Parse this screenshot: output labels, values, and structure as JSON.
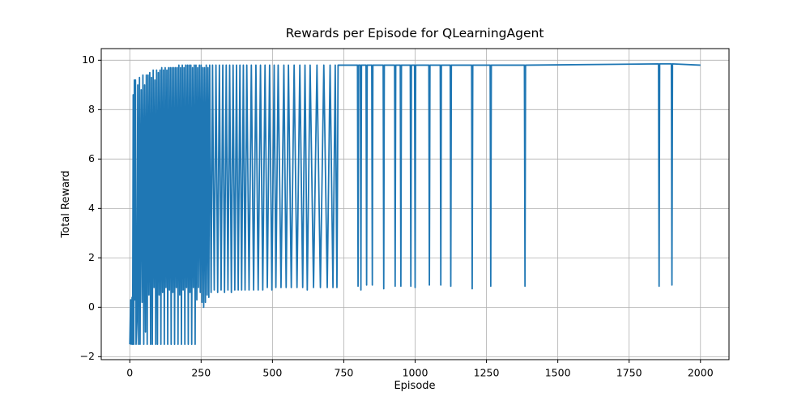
{
  "chart_data": {
    "type": "line",
    "title": "Rewards per Episode for QLearningAgent",
    "x_label": "Episode",
    "y_label": "Total Reward",
    "xlim": [
      -100,
      2100
    ],
    "ylim": [
      -2.12,
      10.47
    ],
    "xticks": [
      0,
      250,
      500,
      750,
      1000,
      1250,
      1500,
      1750,
      2000
    ],
    "yticks": [
      {
        "value": -2,
        "label": "−2"
      },
      0,
      2,
      4,
      6,
      8,
      10
    ],
    "grid": true,
    "series": [
      {
        "color": "#1f77b4",
        "x": [
          0,
          3,
          5,
          8,
          10,
          12,
          14,
          16,
          18,
          20,
          22,
          25,
          28,
          30,
          34,
          36,
          40,
          43,
          46,
          49,
          52,
          55,
          58,
          61,
          64,
          67,
          70,
          73,
          76,
          79,
          82,
          85,
          88,
          91,
          94,
          97,
          100,
          103,
          106,
          109,
          112,
          115,
          118,
          121,
          124,
          127,
          130,
          133,
          136,
          139,
          142,
          145,
          148,
          151,
          154,
          157,
          160,
          163,
          166,
          169,
          172,
          175,
          178,
          181,
          184,
          187,
          190,
          193,
          196,
          199,
          202,
          205,
          208,
          211,
          214,
          217,
          220,
          223,
          226,
          229,
          232,
          235,
          238,
          241,
          244,
          247,
          250,
          253,
          256,
          259,
          262,
          265,
          268,
          271,
          274,
          277,
          280,
          285,
          290,
          296,
          302,
          308,
          314,
          320,
          326,
          332,
          338,
          344,
          350,
          356,
          362,
          368,
          374,
          380,
          386,
          392,
          398,
          404,
          410,
          418,
          426,
          434,
          442,
          450,
          458,
          466,
          474,
          482,
          490,
          498,
          506,
          512,
          520,
          530,
          540,
          548,
          556,
          566,
          576,
          586,
          596,
          606,
          614,
          622,
          632,
          644,
          656,
          668,
          680,
          692,
          702,
          712,
          720,
          726,
          730,
          798,
          800,
          802,
          808,
          810,
          812,
          828,
          830,
          832,
          848,
          850,
          852,
          888,
          890,
          892,
          928,
          930,
          932,
          948,
          950,
          952,
          983,
          985,
          987,
          998,
          1000,
          1002,
          1048,
          1050,
          1052,
          1088,
          1090,
          1092,
          1123,
          1125,
          1127,
          1198,
          1200,
          1202,
          1263,
          1265,
          1267,
          1383,
          1385,
          1387,
          1853,
          1855,
          1857,
          1898,
          1900,
          1902,
          2000
        ],
        "values": [
          -1.5,
          0.3,
          -1.5,
          0.4,
          -1.5,
          8.6,
          -1.5,
          9.2,
          0.3,
          9.2,
          -1.5,
          -0.5,
          9.0,
          -1.5,
          9.3,
          -1.5,
          8.8,
          0.2,
          9.4,
          -1.5,
          9.0,
          -1.0,
          9.4,
          -1.5,
          9.4,
          0.5,
          9.5,
          -1.5,
          9.3,
          -1.5,
          9.6,
          0.8,
          9.2,
          -1.5,
          9.6,
          -1.5,
          9.5,
          0.5,
          9.6,
          -1.5,
          9.7,
          0.6,
          9.6,
          -1.5,
          9.7,
          0.8,
          9.6,
          -1.5,
          9.7,
          0.7,
          9.7,
          -1.5,
          9.7,
          0.6,
          9.7,
          -1.5,
          9.7,
          0.8,
          9.7,
          -1.5,
          9.8,
          0.5,
          9.7,
          -1.5,
          9.8,
          0.7,
          9.7,
          -1.5,
          9.8,
          0.8,
          9.8,
          -1.5,
          9.8,
          0.6,
          9.8,
          -1.5,
          9.7,
          0.8,
          9.8,
          -1.5,
          9.8,
          0.3,
          9.7,
          0.8,
          9.8,
          0.6,
          9.8,
          0.2,
          9.7,
          0.0,
          9.7,
          0.2,
          9.8,
          0.5,
          9.7,
          0.4,
          9.8,
          0.6,
          9.8,
          0.7,
          9.8,
          0.6,
          9.8,
          0.7,
          9.8,
          0.6,
          9.8,
          0.7,
          9.8,
          0.6,
          9.8,
          0.7,
          9.8,
          0.7,
          9.8,
          0.7,
          9.8,
          0.7,
          9.8,
          0.7,
          9.8,
          0.7,
          9.8,
          0.7,
          9.8,
          0.7,
          9.8,
          0.8,
          9.8,
          0.7,
          9.8,
          0.8,
          9.8,
          0.8,
          9.8,
          0.8,
          9.8,
          0.8,
          9.8,
          0.8,
          9.8,
          0.8,
          9.8,
          0.7,
          9.8,
          0.8,
          9.8,
          0.8,
          9.8,
          0.8,
          9.8,
          0.8,
          9.8,
          0.8,
          9.8,
          9.8,
          0.85,
          9.8,
          9.8,
          0.7,
          9.8,
          9.8,
          0.9,
          9.8,
          9.8,
          0.9,
          9.8,
          9.8,
          0.75,
          9.8,
          9.8,
          0.85,
          9.8,
          9.8,
          0.85,
          9.8,
          9.8,
          0.85,
          9.8,
          9.8,
          0.8,
          9.8,
          9.8,
          0.9,
          9.8,
          9.8,
          0.9,
          9.8,
          9.8,
          0.85,
          9.8,
          9.8,
          0.75,
          9.8,
          9.8,
          0.85,
          9.8,
          9.8,
          0.85,
          9.8,
          9.85,
          0.85,
          9.85,
          9.85,
          0.9,
          9.85,
          9.8
        ]
      }
    ]
  }
}
